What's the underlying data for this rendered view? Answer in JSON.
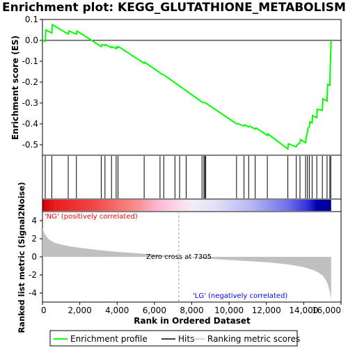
{
  "chart_data": {
    "type": "line",
    "title": "Enrichment plot: KEGG_GLUTATHIONE_METABOLISM",
    "xlabel": "Rank in Ordered Dataset",
    "xlim": [
      0,
      16000
    ],
    "x_ticks": [
      0,
      2000,
      4000,
      6000,
      8000,
      10000,
      12000,
      14000,
      16000
    ],
    "x_tick_labels": [
      "0",
      "2,000",
      "4,000",
      "6,000",
      "8,000",
      "10,000",
      "12,000",
      "14,000",
      "16,000"
    ],
    "enrichment_panel": {
      "ylabel": "Enrichment score (ES)",
      "ylim": [
        -0.55,
        0.1
      ],
      "y_ticks": [
        0.1,
        0.0,
        -0.1,
        -0.2,
        -0.3,
        -0.4,
        -0.5
      ],
      "y_tick_labels": [
        "0.1",
        "0.0",
        "-0.1",
        "-0.2",
        "-0.3",
        "-0.4",
        "-0.5"
      ],
      "zero_line": 0.0,
      "series": [
        {
          "name": "Enrichment profile",
          "color": "#00ff00",
          "x": [
            0,
            150,
            180,
            500,
            530,
            1380,
            1420,
            1820,
            1850,
            3150,
            3200,
            3350,
            3380,
            3700,
            3720,
            3950,
            3970,
            4050,
            4080,
            5450,
            5480,
            6300,
            6350,
            6500,
            6550,
            8550,
            8600,
            8700,
            8750,
            10400,
            10450,
            10800,
            10850,
            11050,
            11100,
            11400,
            11450,
            12050,
            12080,
            13150,
            13180,
            13600,
            13650,
            13800,
            13830,
            14100,
            14130,
            14200,
            14230,
            14300,
            14330,
            14450,
            14480,
            14700,
            14730,
            15000,
            15030,
            15250,
            15280,
            15400,
            15430,
            15470
          ],
          "y": [
            0.0,
            -0.005,
            0.05,
            0.035,
            0.075,
            0.03,
            0.045,
            0.03,
            0.045,
            -0.03,
            -0.02,
            -0.025,
            -0.02,
            -0.035,
            -0.03,
            -0.04,
            -0.03,
            -0.035,
            -0.03,
            -0.11,
            -0.105,
            -0.155,
            -0.16,
            -0.165,
            -0.168,
            -0.295,
            -0.298,
            -0.298,
            -0.3,
            -0.4,
            -0.398,
            -0.41,
            -0.405,
            -0.415,
            -0.41,
            -0.425,
            -0.42,
            -0.455,
            -0.448,
            -0.52,
            -0.495,
            -0.51,
            -0.5,
            -0.49,
            -0.475,
            -0.49,
            -0.465,
            -0.44,
            -0.42,
            -0.415,
            -0.39,
            -0.395,
            -0.36,
            -0.37,
            -0.33,
            -0.335,
            -0.28,
            -0.29,
            -0.21,
            -0.215,
            -0.11,
            0.0
          ]
        }
      ]
    },
    "hits": [
      150,
      500,
      1380,
      1820,
      3150,
      3350,
      3700,
      3950,
      4050,
      5450,
      6300,
      6500,
      7100,
      7350,
      7700,
      8550,
      8650,
      8700,
      8750,
      10400,
      10800,
      11050,
      11400,
      12050,
      13150,
      13600,
      13800,
      14100,
      14200,
      14300,
      14450,
      14700,
      15000,
      15250,
      15400,
      15450
    ],
    "ranked_panel": {
      "ylabel": "Ranked list metric (Signal2Noise)",
      "ylim": [
        -5,
        5
      ],
      "y_ticks": [
        4,
        2,
        0,
        -2,
        -4
      ],
      "y_tick_labels": [
        "4",
        "2",
        "0",
        "-2",
        "-4"
      ],
      "fill_color": "#c0c0c0",
      "x": [
        0,
        100,
        300,
        600,
        1000,
        1500,
        2000,
        3000,
        4000,
        5000,
        6000,
        7000,
        7305,
        8000,
        9000,
        10000,
        11000,
        12000,
        13000,
        13500,
        14000,
        14500,
        14800,
        15000,
        15200,
        15300,
        15400,
        15470
      ],
      "y": [
        3.2,
        2.6,
        2.0,
        1.6,
        1.35,
        1.15,
        1.0,
        0.75,
        0.55,
        0.4,
        0.25,
        0.1,
        0.0,
        -0.1,
        -0.22,
        -0.35,
        -0.47,
        -0.6,
        -0.8,
        -0.95,
        -1.15,
        -1.45,
        -1.75,
        -2.05,
        -2.6,
        -3.1,
        -3.9,
        -4.6
      ]
    },
    "annotations": {
      "positive": "'NG' (positively correlated)",
      "negative": "'LG' (negatively correlated)",
      "zero_cross": "Zero cross at 7305",
      "zero_cross_x": 7305
    },
    "legend": {
      "placement": "bottom",
      "items": [
        {
          "label": "Enrichment profile",
          "color": "#00ff00"
        },
        {
          "label": "Hits",
          "color": "#000000"
        },
        {
          "label": "Ranking metric scores",
          "color": "#c0c0c0"
        }
      ]
    }
  }
}
